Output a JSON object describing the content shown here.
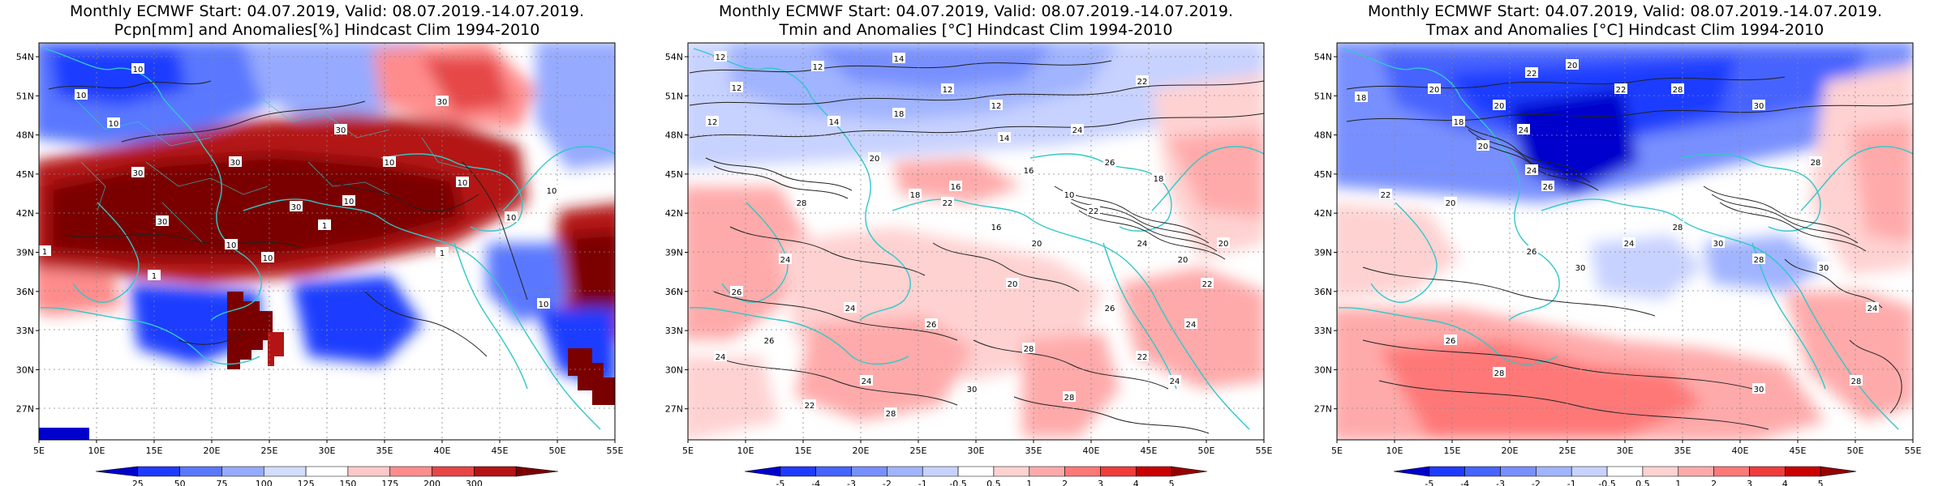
{
  "panels": [
    {
      "id": "precip",
      "title_line1": "Monthly ECMWF Start: 04.07.2019, Valid: 08.07.2019.-14.07.2019.",
      "title_line2": "Pcpn[mm] and Anomalies[%] Hindcast Clim 1994-2010",
      "variable": "precipitation anomaly",
      "colorbar": {
        "labels": [
          "25",
          "50",
          "75",
          "100",
          "125",
          "150",
          "175",
          "200",
          "300"
        ],
        "colors": [
          "#0000cc",
          "#1e3cff",
          "#5a78ff",
          "#96aaff",
          "#d2dcff",
          "#ffffff",
          "#ffc8c8",
          "#ff8c8c",
          "#e64646",
          "#b41414",
          "#7a0000"
        ]
      },
      "contour_labels": [
        "10",
        "10",
        "10",
        "30",
        "30",
        "30",
        "30",
        "10",
        "10",
        "10",
        "30",
        "10",
        "1",
        "1",
        "10",
        "30",
        "10",
        "10",
        "1",
        "1",
        "10"
      ]
    },
    {
      "id": "tmin",
      "title_line1": "Monthly ECMWF Start: 04.07.2019, Valid: 08.07.2019.-14.07.2019.",
      "title_line2": "Tmin and Anomalies [°C] Hindcast Clim 1994-2010",
      "variable": "minimum temperature anomaly",
      "colorbar": {
        "labels": [
          "-5",
          "-4",
          "-3",
          "-2",
          "-1",
          "-0.5",
          "0.5",
          "1",
          "2",
          "3",
          "4",
          "5"
        ],
        "colors": [
          "#0000cc",
          "#1e3cff",
          "#4664ff",
          "#7890ff",
          "#a0b4ff",
          "#c8d2ff",
          "#ffffff",
          "#ffd2d2",
          "#ffaaaa",
          "#ff7878",
          "#f03c3c",
          "#c80000",
          "#960000"
        ]
      },
      "contour_labels": [
        "12",
        "12",
        "12",
        "14",
        "12",
        "12",
        "14",
        "18",
        "20",
        "12",
        "14",
        "16",
        "10",
        "18",
        "22",
        "22",
        "24",
        "16",
        "16",
        "20",
        "22",
        "24",
        "20",
        "22",
        "18",
        "24",
        "26",
        "20",
        "26",
        "24",
        "26",
        "28",
        "24",
        "22",
        "24",
        "26",
        "24",
        "22",
        "28",
        "30",
        "28",
        "24",
        "20",
        "26",
        "28"
      ]
    },
    {
      "id": "tmax",
      "title_line1": "Monthly ECMWF Start: 04.07.2019, Valid: 08.07.2019.-14.07.2019.",
      "title_line2": "Tmax and Anomalies [°C] Hindcast Clim 1994-2010",
      "variable": "maximum temperature anomaly",
      "colorbar": {
        "labels": [
          "-5",
          "-4",
          "-3",
          "-2",
          "-1",
          "-0.5",
          "0.5",
          "1",
          "2",
          "3",
          "4",
          "5"
        ],
        "colors": [
          "#0000cc",
          "#1e3cff",
          "#4664ff",
          "#7890ff",
          "#a0b4ff",
          "#c8d2ff",
          "#ffffff",
          "#ffd2d2",
          "#ffaaaa",
          "#ff7878",
          "#f03c3c",
          "#c80000",
          "#960000"
        ]
      },
      "contour_labels": [
        "18",
        "20",
        "20",
        "22",
        "20",
        "22",
        "24",
        "20",
        "18",
        "20",
        "22",
        "24",
        "26",
        "28",
        "30",
        "28",
        "26",
        "30",
        "24",
        "28",
        "30",
        "28",
        "30",
        "24",
        "26",
        "28",
        "30",
        "28"
      ]
    }
  ],
  "map_axes": {
    "lon_labels": [
      "5E",
      "10E",
      "15E",
      "20E",
      "25E",
      "30E",
      "35E",
      "40E",
      "45E",
      "50E",
      "55E"
    ],
    "lat_labels": [
      "54N",
      "51N",
      "48N",
      "45N",
      "42N",
      "39N",
      "36N",
      "33N",
      "30N",
      "27N"
    ],
    "lon_range": [
      5,
      55
    ],
    "lat_range": [
      25,
      55.5
    ]
  },
  "colors": {
    "coast": "#30c8c8",
    "contour": "#202020",
    "grid": "#888888",
    "land_mask": "#ffffff"
  }
}
